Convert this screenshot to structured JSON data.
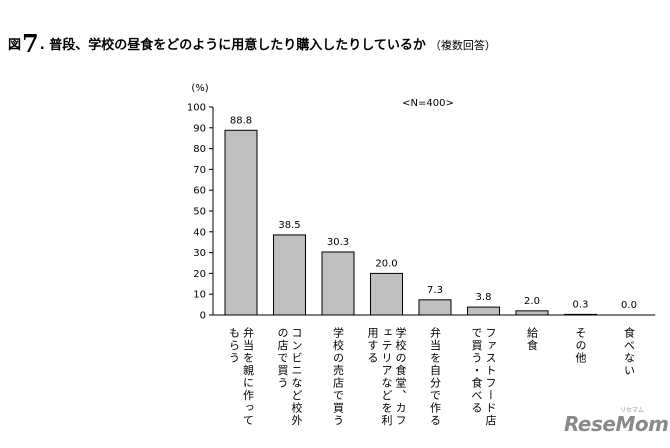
{
  "title": {
    "fig_label": "図",
    "fig_number": "7",
    "fig_dot": ".",
    "text": "普段、学校の昼食をどのように用意したり購入したりしているか",
    "note": "（複数回答）"
  },
  "watermark": {
    "text": "ReseMom",
    "sub": "リセマム"
  },
  "chart_data": {
    "type": "bar",
    "ylabel": "(%)",
    "ylim": [
      0,
      100
    ],
    "yticks": [
      0,
      10,
      20,
      30,
      40,
      50,
      60,
      70,
      80,
      90,
      100
    ],
    "annotation": "<N=400>",
    "categories": [
      {
        "lines": [
          "弁当を親に作って",
          "もらう"
        ]
      },
      {
        "lines": [
          "コンビニなど校外",
          "の店で買う"
        ]
      },
      {
        "lines": [
          "学校の売店で買う"
        ]
      },
      {
        "lines": [
          "学校の食堂、カフ",
          "ェテリアなどを利",
          "用する"
        ]
      },
      {
        "lines": [
          "弁当を自分で作る"
        ]
      },
      {
        "lines": [
          "ファストフード店",
          "で買う・食べる"
        ]
      },
      {
        "lines": [
          "給食"
        ]
      },
      {
        "lines": [
          "その他"
        ]
      },
      {
        "lines": [
          "食べない"
        ]
      }
    ],
    "values": [
      88.8,
      38.5,
      30.3,
      20.0,
      7.3,
      3.8,
      2.0,
      0.3,
      0.0
    ],
    "value_labels": [
      "88.8",
      "38.5",
      "30.3",
      "20.0",
      "7.3",
      "3.8",
      "2.0",
      "0.3",
      "0.0"
    ],
    "bar_color": "#bfbfbf",
    "bar_edge": "#000000",
    "grid": false
  }
}
